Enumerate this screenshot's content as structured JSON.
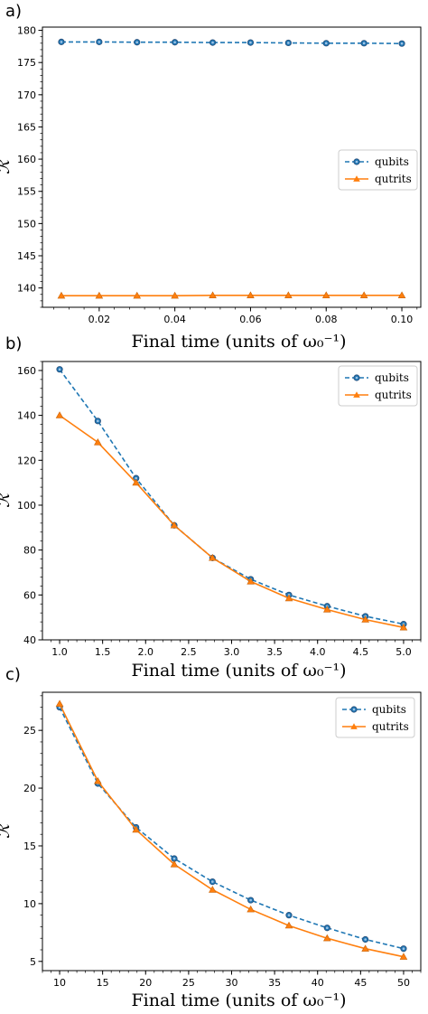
{
  "colors": {
    "qubits": "#1f77b4",
    "qutrits": "#ff7f0e"
  },
  "chart_data": [
    {
      "type": "line",
      "panel_label": "a)",
      "xlabel": "Final time (units of ω₀⁻¹)",
      "ylabel": "ℛ",
      "xlim": [
        0.005,
        0.105
      ],
      "ylim": [
        137,
        180.5
      ],
      "xticks": [
        0.02,
        0.04,
        0.06,
        0.08,
        0.1
      ],
      "xtick_labels": [
        "0.02",
        "0.04",
        "0.06",
        "0.08",
        "0.10"
      ],
      "yticks": [
        140,
        145,
        150,
        155,
        160,
        165,
        170,
        175,
        180
      ],
      "legend_loc": "center-right",
      "x": [
        0.01,
        0.02,
        0.03,
        0.04,
        0.05,
        0.06,
        0.07,
        0.08,
        0.09,
        0.1
      ],
      "series": [
        {
          "name": "qubits",
          "style": "dashed",
          "marker": "circle",
          "values": [
            178.2,
            178.2,
            178.15,
            178.15,
            178.1,
            178.1,
            178.05,
            178.0,
            178.0,
            177.95
          ]
        },
        {
          "name": "qutrits",
          "style": "solid",
          "marker": "triangle",
          "values": [
            138.8,
            138.8,
            138.8,
            138.8,
            138.85,
            138.85,
            138.85,
            138.85,
            138.85,
            138.85
          ]
        }
      ]
    },
    {
      "type": "line",
      "panel_label": "b)",
      "xlabel": "Final time (units of ω₀⁻¹)",
      "ylabel": "ℛ",
      "xlim": [
        0.8,
        5.2
      ],
      "ylim": [
        40,
        164
      ],
      "xticks": [
        1.0,
        1.5,
        2.0,
        2.5,
        3.0,
        3.5,
        4.0,
        4.5,
        5.0
      ],
      "xtick_labels": [
        "1.0",
        "1.5",
        "2.0",
        "2.5",
        "3.0",
        "3.5",
        "4.0",
        "4.5",
        "5.0"
      ],
      "yticks": [
        40,
        60,
        80,
        100,
        120,
        140,
        160
      ],
      "legend_loc": "top-right",
      "x": [
        1.0,
        1.444,
        1.889,
        2.333,
        2.778,
        3.222,
        3.667,
        4.111,
        4.556,
        5.0
      ],
      "series": [
        {
          "name": "qubits",
          "style": "dashed",
          "marker": "circle",
          "values": [
            160.5,
            137.5,
            112.0,
            91.0,
            76.5,
            67.0,
            60.0,
            55.0,
            50.5,
            47.0
          ]
        },
        {
          "name": "qutrits",
          "style": "solid",
          "marker": "triangle",
          "values": [
            140.0,
            128.0,
            110.0,
            91.0,
            76.5,
            66.0,
            58.5,
            53.5,
            49.0,
            45.5
          ]
        }
      ]
    },
    {
      "type": "line",
      "panel_label": "c)",
      "xlabel": "Final time (units of ω₀⁻¹)",
      "ylabel": "ℛ",
      "xlim": [
        8,
        52
      ],
      "ylim": [
        4.2,
        28.3
      ],
      "xticks": [
        10,
        15,
        20,
        25,
        30,
        35,
        40,
        45,
        50
      ],
      "xtick_labels": [
        "10",
        "15",
        "20",
        "25",
        "30",
        "35",
        "40",
        "45",
        "50"
      ],
      "yticks": [
        5,
        10,
        15,
        20,
        25
      ],
      "legend_loc": "top-right",
      "x": [
        10,
        14.444,
        18.889,
        23.333,
        27.778,
        32.222,
        36.667,
        41.111,
        45.556,
        50
      ],
      "series": [
        {
          "name": "qubits",
          "style": "dashed",
          "marker": "circle",
          "values": [
            27.0,
            20.4,
            16.6,
            13.9,
            11.9,
            10.3,
            9.0,
            7.9,
            6.9,
            6.1
          ]
        },
        {
          "name": "qutrits",
          "style": "solid",
          "marker": "triangle",
          "values": [
            27.3,
            20.6,
            16.4,
            13.4,
            11.2,
            9.5,
            8.1,
            7.0,
            6.1,
            5.4
          ]
        }
      ]
    }
  ]
}
